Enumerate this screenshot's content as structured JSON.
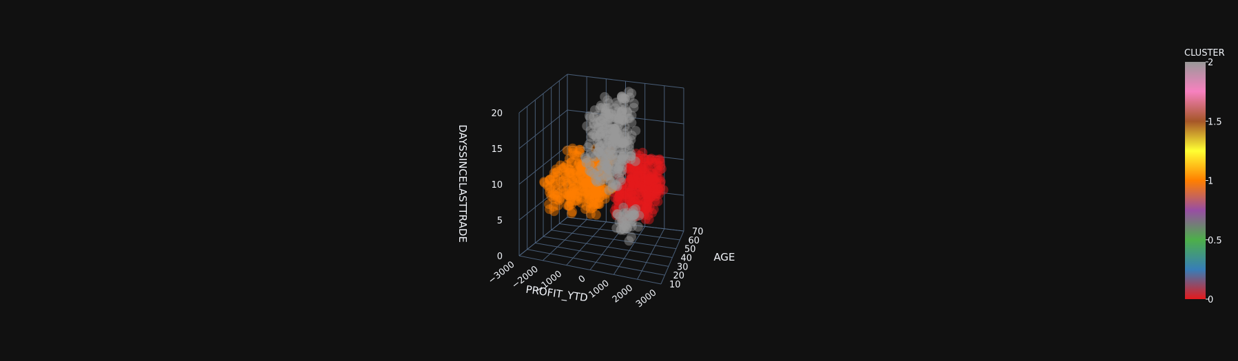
{
  "chart_data": {
    "type": "scatter3d",
    "axes": {
      "x": {
        "title": "PROFIT_YTD",
        "range": [
          -3000,
          3000
        ],
        "ticks": [
          -3000,
          -2000,
          -1000,
          0,
          1000,
          2000,
          3000
        ],
        "tick_labels": [
          "−3000",
          "−2000",
          "−1000",
          "0",
          "1000",
          "2000",
          "3000"
        ]
      },
      "y": {
        "title": "AGE",
        "range": [
          10,
          70
        ],
        "ticks": [
          10,
          20,
          30,
          40,
          50,
          60,
          70
        ],
        "tick_labels": [
          "10",
          "20",
          "30",
          "40",
          "50",
          "60",
          "70"
        ]
      },
      "z": {
        "title": "DAYSSINCELASTTRADE",
        "range": [
          0,
          20
        ],
        "ticks": [
          0,
          5,
          10,
          15,
          20
        ],
        "tick_labels": [
          "0",
          "5",
          "10",
          "15",
          "20"
        ]
      }
    },
    "grid": true,
    "colorbar": {
      "title": "CLUSTER",
      "range": [
        0,
        2
      ],
      "ticks": [
        0,
        0.5,
        1,
        1.5,
        2
      ],
      "tick_labels": [
        "0",
        "0.5",
        "1",
        "1.5",
        "2"
      ],
      "colors": [
        "#e41a1c",
        "#377eb8",
        "#4daf4a",
        "#984ea3",
        "#ff7f00",
        "#ffff33",
        "#a65628",
        "#f781bf",
        "#999999"
      ]
    },
    "clusters": [
      {
        "cluster": 0,
        "color": "#e41a1c",
        "profit_range": [
          500,
          2200
        ],
        "age_range": [
          25,
          65
        ],
        "days_range": [
          6,
          11
        ]
      },
      {
        "cluster": 1,
        "color": "#ff7f00",
        "profit_range": [
          -2500,
          -300
        ],
        "age_range": [
          25,
          65
        ],
        "days_range": [
          5,
          11
        ]
      },
      {
        "cluster": 2,
        "color": "#999999",
        "profit_range": [
          -600,
          900
        ],
        "age_range": [
          20,
          60
        ],
        "days_range": [
          10,
          20
        ]
      },
      {
        "cluster": 2,
        "color": "#999999",
        "profit_range": [
          -200,
          800
        ],
        "age_range": [
          50,
          70
        ],
        "days_range": [
          0,
          3
        ]
      }
    ]
  }
}
